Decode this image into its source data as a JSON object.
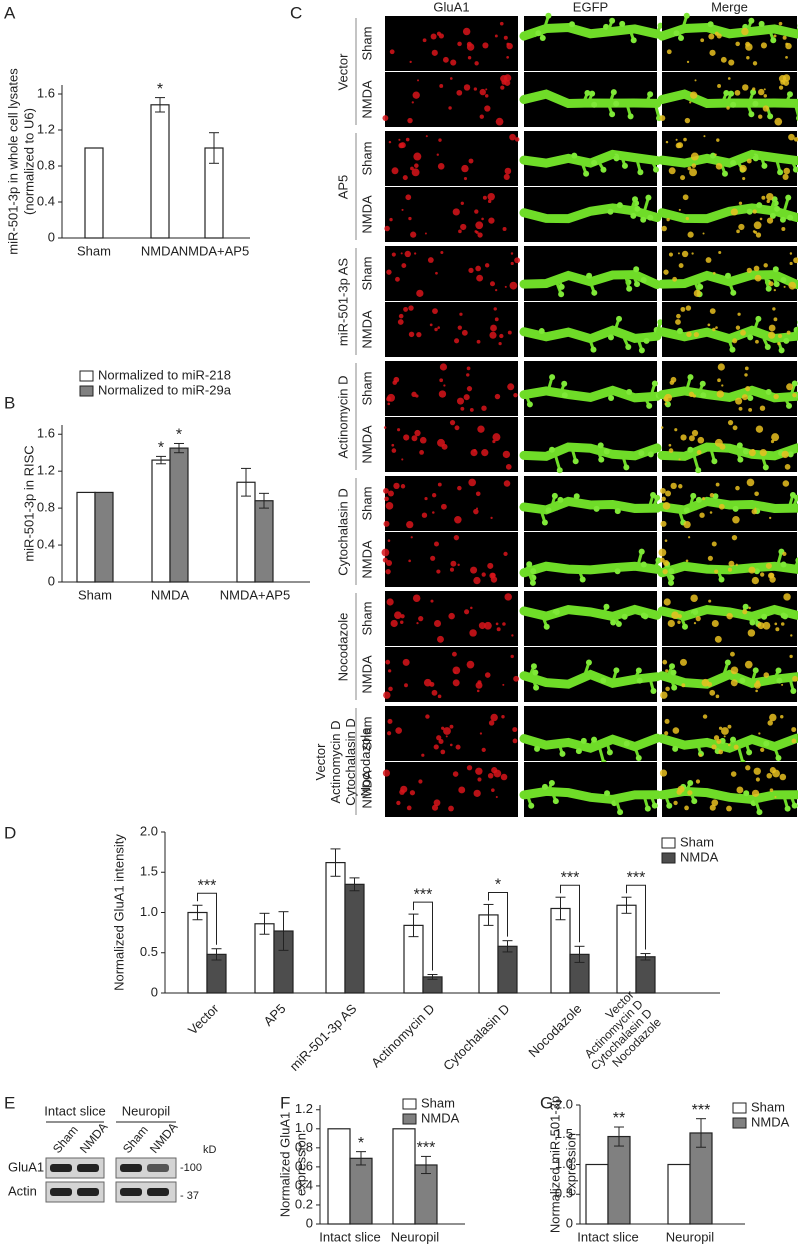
{
  "chart_data": [
    {
      "type": "bar",
      "panel": "A",
      "ylabel": [
        "miR-501-3p in whole cell lysates",
        "(normalized to U6)"
      ],
      "categories": [
        "Sham",
        "NMDA",
        "NMDA+AP5"
      ],
      "series": [
        {
          "color": "#ffffff",
          "values": [
            1.0,
            1.48,
            1.0
          ],
          "errors": [
            0,
            0.08,
            0.17
          ]
        }
      ],
      "ylim": [
        0,
        1.7
      ],
      "yticks": [
        0,
        0.4,
        0.8,
        1.2,
        1.6
      ],
      "annotations": [
        {
          "category": 1,
          "series": 0,
          "text": "*"
        }
      ]
    },
    {
      "type": "bar",
      "panel": "B",
      "ylabel": [
        "miR-501-3p in RISC"
      ],
      "categories": [
        "Sham",
        "NMDA",
        "NMDA+AP5"
      ],
      "series": [
        {
          "name": "Normalized to miR-218",
          "color": "#ffffff",
          "values": [
            0.97,
            1.32,
            1.08
          ],
          "errors": [
            0,
            0.04,
            0.15
          ]
        },
        {
          "name": "Normalized to miR-29a",
          "color": "#808080",
          "values": [
            0.97,
            1.45,
            0.88
          ],
          "errors": [
            0,
            0.05,
            0.08
          ]
        }
      ],
      "ylim": [
        0,
        1.7
      ],
      "yticks": [
        0,
        0.4,
        0.8,
        1.2,
        1.6
      ],
      "annotations": [
        {
          "category": 1,
          "series": 0,
          "text": "*"
        },
        {
          "category": 1,
          "series": 1,
          "text": "*"
        }
      ]
    },
    {
      "type": "bar",
      "panel": "D",
      "ylabel": [
        "Normalized GluA1 intensity"
      ],
      "categories": [
        [
          "Vector"
        ],
        [
          "AP5"
        ],
        [
          "miR-501-3p AS"
        ],
        [
          "Actinomycin D"
        ],
        [
          "Cytochalasin D"
        ],
        [
          "Nocodazole"
        ],
        [
          "Vector",
          "Actinomycin D",
          "Cytochalasin D",
          "Nocodazole"
        ]
      ],
      "series": [
        {
          "name": "Sham",
          "color": "#ffffff",
          "values": [
            1.0,
            0.86,
            1.62,
            0.84,
            0.97,
            1.05,
            1.09
          ],
          "errors": [
            0.09,
            0.13,
            0.17,
            0.14,
            0.13,
            0.14,
            0.1
          ]
        },
        {
          "name": "NMDA",
          "color": "#4d4d4d",
          "values": [
            0.48,
            0.77,
            1.35,
            0.2,
            0.58,
            0.48,
            0.45
          ],
          "errors": [
            0.07,
            0.24,
            0.08,
            0.03,
            0.07,
            0.1,
            0.04
          ]
        }
      ],
      "ylim": [
        0,
        2.0
      ],
      "yticks": [
        0,
        0.5,
        {
          "value": 1.0,
          "label": "1.0"
        },
        1.5,
        {
          "value": 2.0,
          "label": "2.0"
        }
      ],
      "annotations": [
        {
          "category": 0,
          "bracket": true,
          "text": "***"
        },
        {
          "category": 3,
          "bracket": true,
          "text": "***"
        },
        {
          "category": 4,
          "bracket": true,
          "text": "*"
        },
        {
          "category": 5,
          "bracket": true,
          "text": "***"
        },
        {
          "category": 6,
          "bracket": true,
          "text": "***"
        }
      ]
    },
    {
      "type": "bar",
      "panel": "F",
      "ylabel": [
        "Normalized GluA1",
        "expression"
      ],
      "categories": [
        "Intact slice",
        "Neuropil"
      ],
      "series": [
        {
          "name": "Sham",
          "color": "#ffffff",
          "values": [
            1.0,
            1.0
          ],
          "errors": [
            0,
            0
          ]
        },
        {
          "name": "NMDA",
          "color": "#808080",
          "values": [
            0.69,
            0.62
          ],
          "errors": [
            0.07,
            0.09
          ]
        }
      ],
      "ylim": [
        0,
        1.25
      ],
      "yticks": [
        0,
        0.2,
        0.4,
        0.6,
        0.8,
        {
          "value": 1.0,
          "label": "1.0"
        },
        1.2
      ],
      "annotations": [
        {
          "category": 0,
          "series": 1,
          "text": "*"
        },
        {
          "category": 1,
          "series": 1,
          "text": "***"
        }
      ]
    },
    {
      "type": "bar",
      "panel": "G",
      "ylabel": [
        "Normalized miR-501-3p",
        "expression"
      ],
      "categories": [
        "Intact slice",
        "Neuropil"
      ],
      "series": [
        {
          "name": "Sham",
          "color": "#ffffff",
          "values": [
            1.0,
            1.0
          ],
          "errors": [
            0,
            0
          ]
        },
        {
          "name": "NMDA",
          "color": "#808080",
          "values": [
            1.47,
            1.53
          ],
          "errors": [
            0.16,
            0.24
          ]
        }
      ],
      "ylim": [
        0,
        2.0
      ],
      "yticks": [
        0,
        0.5,
        {
          "value": 1.0,
          "label": "1.0"
        },
        1.5,
        {
          "value": 2.0,
          "label": "2.0"
        }
      ],
      "annotations": [
        {
          "category": 0,
          "series": 1,
          "text": "**"
        },
        {
          "category": 1,
          "series": 1,
          "text": "***"
        }
      ]
    }
  ],
  "image_grid": {
    "panel": "C",
    "columns": [
      "GluA1",
      "EGFP",
      "Merge"
    ],
    "groups": [
      {
        "label": [
          "Vector"
        ],
        "rows": [
          "Sham",
          "NMDA"
        ]
      },
      {
        "label": [
          "AP5"
        ],
        "rows": [
          "Sham",
          "NMDA"
        ]
      },
      {
        "label": [
          "miR-501-3p AS"
        ],
        "rows": [
          "Sham",
          "NMDA"
        ]
      },
      {
        "label": [
          "Actinomycin D"
        ],
        "rows": [
          "Sham",
          "NMDA"
        ]
      },
      {
        "label": [
          "Cytochalasin D"
        ],
        "rows": [
          "Sham",
          "NMDA"
        ]
      },
      {
        "label": [
          "Nocodazole"
        ],
        "rows": [
          "Sham",
          "NMDA"
        ]
      },
      {
        "label": [
          "Vector",
          "Actinomycin D",
          "Cytochalasin D",
          "Nocodazole"
        ],
        "rows": [
          "Sham",
          "NMDA"
        ]
      }
    ]
  },
  "blot": {
    "panel": "E",
    "groups": [
      {
        "label": "Intact slice",
        "lanes": [
          "Sham",
          "NMDA"
        ]
      },
      {
        "label": "Neuropil",
        "lanes": [
          "Sham",
          "NMDA"
        ]
      }
    ],
    "rows": [
      "GluA1",
      "Actin"
    ],
    "unit": "kD",
    "markers": [
      "-100",
      "- 37"
    ]
  }
}
